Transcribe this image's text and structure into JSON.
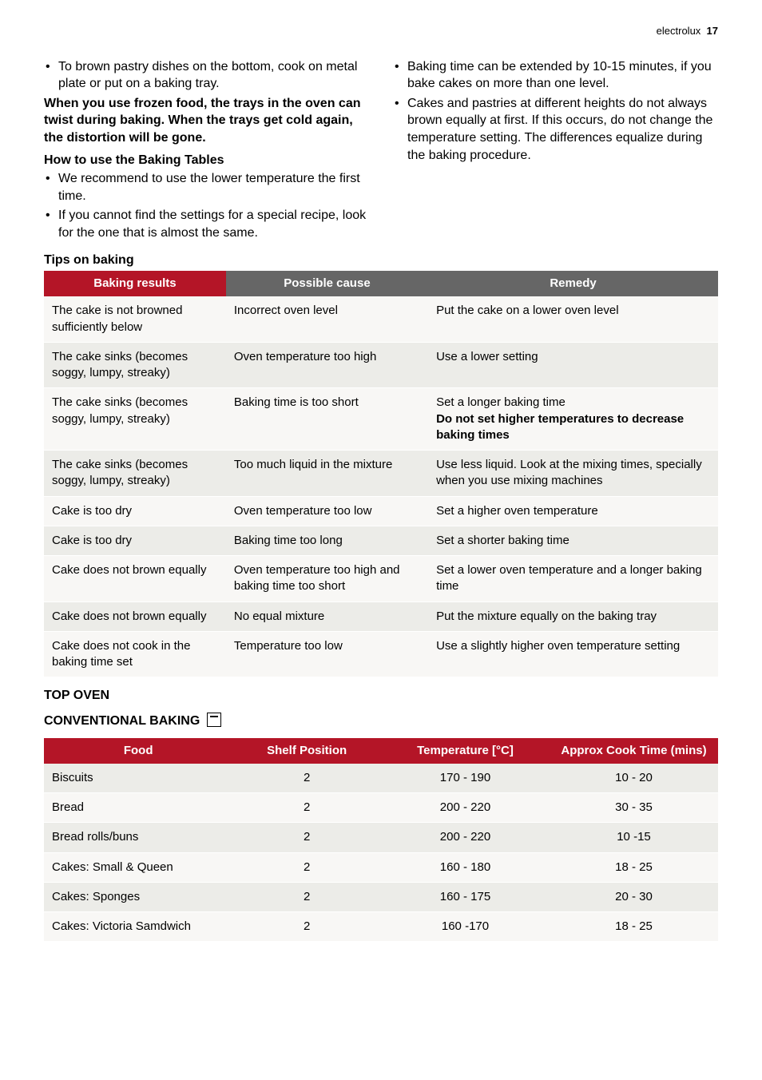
{
  "header": {
    "brand": "electrolux",
    "page": "17"
  },
  "leftCol": {
    "bullet1": "To brown pastry dishes on the bottom, cook on metal plate or put on a baking tray.",
    "frozen": "When you use frozen food, the trays in the oven can twist during baking. When the trays get cold again, the distortion will be gone.",
    "howToHead": "How to use the Baking Tables",
    "howTo1": "We recommend to use the lower temperature the first time.",
    "howTo2": "If you cannot find the settings for a special recipe, look for the one that is almost the same."
  },
  "rightCol": {
    "r1": "Baking time can be extended by 10-15 minutes, if you bake cakes on more than one level.",
    "r2": "Cakes and pastries at different heights do not always brown equally at first. If this occurs, do not change the temperature setting. The differences equalize during the baking procedure."
  },
  "tipsHead": "Tips on baking",
  "bakingHeaders": {
    "c1": "Baking results",
    "c2": "Possible cause",
    "c3": "Remedy"
  },
  "bakingRows": [
    {
      "r": "The cake is not browned sufficiently below",
      "c": "Incorrect oven level",
      "m": "Put the cake on a lower oven level"
    },
    {
      "r": "The cake sinks (becomes soggy, lumpy, streaky)",
      "c": "Oven temperature too high",
      "m": "Use a lower setting"
    },
    {
      "r": "The cake sinks (becomes soggy, lumpy, streaky)",
      "c": "Baking time is too short",
      "m": "Set a longer baking time",
      "mbold": "Do not set higher temperatures to decrease baking times"
    },
    {
      "r": "The cake sinks (becomes soggy, lumpy, streaky)",
      "c": "Too much liquid in the mixture",
      "m": "Use less liquid. Look at the mixing times, specially when you use mixing machines"
    },
    {
      "r": "Cake is too dry",
      "c": "Oven temperature too low",
      "m": "Set a higher oven temperature"
    },
    {
      "r": "Cake is too dry",
      "c": "Baking time too long",
      "m": "Set a shorter baking time"
    },
    {
      "r": "Cake does not brown equally",
      "c": "Oven temperature too high and baking time too short",
      "m": "Set a lower oven temperature and a longer baking time"
    },
    {
      "r": "Cake does not brown equally",
      "c": "No equal mixture",
      "m": "Put the mixture equally on the baking tray"
    },
    {
      "r": "Cake does not cook in the baking time set",
      "c": "Temperature too low",
      "m": "Use a slightly higher oven temperature setting"
    }
  ],
  "topOvenHead": "TOP OVEN",
  "convHead": "CONVENTIONAL BAKING",
  "ovenHeaders": {
    "c1": "Food",
    "c2": "Shelf Position",
    "c3": "Temperature [°C]",
    "c4": "Approx Cook Time (mins)"
  },
  "ovenRows": [
    {
      "f": "Biscuits",
      "s": "2",
      "t": "170 - 190",
      "a": "10 - 20"
    },
    {
      "f": "Bread",
      "s": "2",
      "t": "200 - 220",
      "a": "30 - 35"
    },
    {
      "f": "Bread rolls/buns",
      "s": "2",
      "t": "200 - 220",
      "a": "10 -15"
    },
    {
      "f": "Cakes: Small & Queen",
      "s": "2",
      "t": "160 - 180",
      "a": "18 - 25"
    },
    {
      "f": "Cakes: Sponges",
      "s": "2",
      "t": "160 - 175",
      "a": "20 - 30"
    },
    {
      "f": "Cakes: Victoria Samdwich",
      "s": "2",
      "t": "160 -170",
      "a": "18 - 25"
    }
  ],
  "style": {
    "header_red": "#b41527",
    "header_gray": "#666666",
    "row_light": "#f8f7f5",
    "row_dark": "#ecece8"
  }
}
